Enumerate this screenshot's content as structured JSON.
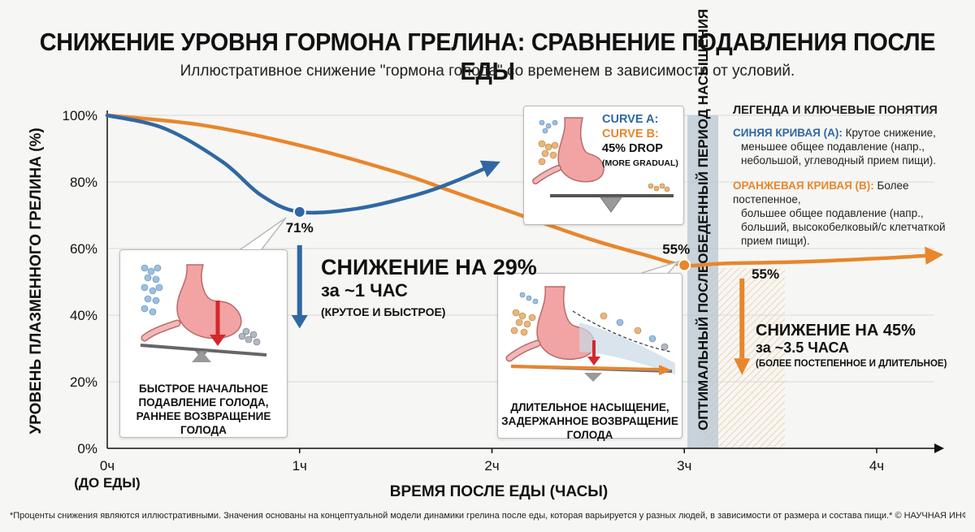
{
  "header": {
    "title": "СНИЖЕНИЕ УРОВНЯ ГОРМОНА ГРЕЛИНА: СРАВНЕНИЕ ПОДАВЛЕНИЯ ПОСЛЕ ЕДЫ",
    "subtitle": "Иллюстративное снижение \"гормона голода\" со временем в зависимости от условий."
  },
  "colors": {
    "curve_a": "#2f68a3",
    "curve_b": "#e8862c",
    "saturation_band": "#b7c5d3",
    "hatch": "#f2c89a"
  },
  "chart_data": {
    "type": "line",
    "xlabel": "ВРЕМЯ ПОСЛЕ ЕДЫ (ЧАСЫ)",
    "ylabel": "УРОВЕНЬ ПЛАЗМЕННОГО ГРЕЛИНА (%)",
    "xlim": [
      0,
      4.3
    ],
    "ylim": [
      0,
      100
    ],
    "x_ticks": [
      "0ч",
      "1ч",
      "2ч",
      "3ч",
      "4ч"
    ],
    "x_tick_sub": "(ДО ЕДЫ)",
    "y_ticks": [
      "0%",
      "20%",
      "40%",
      "60%",
      "80%",
      "100%"
    ],
    "grid": true,
    "series": [
      {
        "name": "CURVE A",
        "x": [
          0,
          0.3,
          0.6,
          0.8,
          1.0,
          1.3,
          1.6,
          1.8,
          2.0
        ],
        "y": [
          100,
          96,
          86,
          76,
          71,
          72,
          76,
          80,
          85
        ]
      },
      {
        "name": "CURVE B",
        "x": [
          0,
          0.5,
          1.0,
          1.5,
          1.8,
          2.1,
          2.5,
          2.8,
          3.0,
          3.2,
          3.6,
          4.0,
          4.3
        ],
        "y": [
          100,
          97,
          91,
          83,
          77,
          71,
          63,
          58,
          55,
          55.5,
          56,
          57,
          58
        ]
      }
    ],
    "annotations": {
      "a_min_label": "71%",
      "b_point_label": "55%",
      "b_arrow_label": "55%",
      "saturation_band_label": "ОПТИМАЛЬНЫЙ ПОСЛЕОБЕДЕННЫЙ ПЕРИОД НАСЫЩЕНИЯ"
    }
  },
  "callouts": {
    "a": {
      "line1": "СНИЖЕНИЕ НА 29%",
      "line2": "за ~1 ЧАС",
      "line3": "(КРУТОЕ И БЫСТРОЕ)"
    },
    "b": {
      "line1": "СНИЖЕНИЕ НА 45%",
      "line2": "за ~3.5 ЧАСА",
      "line3": "(БОЛЕЕ ПОСТЕПЕННОЕ И ДЛИТЕЛЬНОЕ)"
    }
  },
  "panels": {
    "left": {
      "caption1": "БЫСТРОЕ НАЧАЛЬНОЕ",
      "caption2": "ПОДАВЛЕНИЕ ГОЛОДА,",
      "caption3": "РАННЕЕ ВОЗВРАЩЕНИЕ ГОЛОДА"
    },
    "middle": {
      "caption1": "ДЛИТЕЛЬНОЕ НАСЫЩЕНИЕ,",
      "caption2": "ЗАДЕРЖАННОЕ ВОЗВРАЩЕНИЕ ГОЛОДА"
    },
    "top": {
      "curve_a": "CURVE A:",
      "curve_b": "CURVE B:",
      "drop": "45% DROP",
      "gradual": "(MORE GRADUAL)"
    }
  },
  "legend": {
    "title": "ЛЕГЕНДА И КЛЮЧЕВЫЕ ПОНЯТИЯ",
    "blue_label": "СИНЯЯ КРИВАЯ (А):",
    "blue_text_1": " Крутое снижение,",
    "blue_text_2": "меньшее общее подавление (напр.,",
    "blue_text_3": "небольшой, углеводный прием пищи).",
    "orange_label": "ОРАНЖЕВАЯ КРИВАЯ (В):",
    "orange_text_1": " Более постепенное,",
    "orange_text_2": "большее общее подавление (напр.,",
    "orange_text_3": "больший, высокобелковый/с клетчаткой",
    "orange_text_4": "прием пищи)."
  },
  "footnote": "*Проценты снижения являются иллюстративными. Значения основаны на концептуальной модели динамики грелина после еды, которая варьируется у разных людей, в зависимости от размера и состава пищи.* © НАУЧНАЯ ИНФОГРАФИКА ГОРМОНОВ"
}
